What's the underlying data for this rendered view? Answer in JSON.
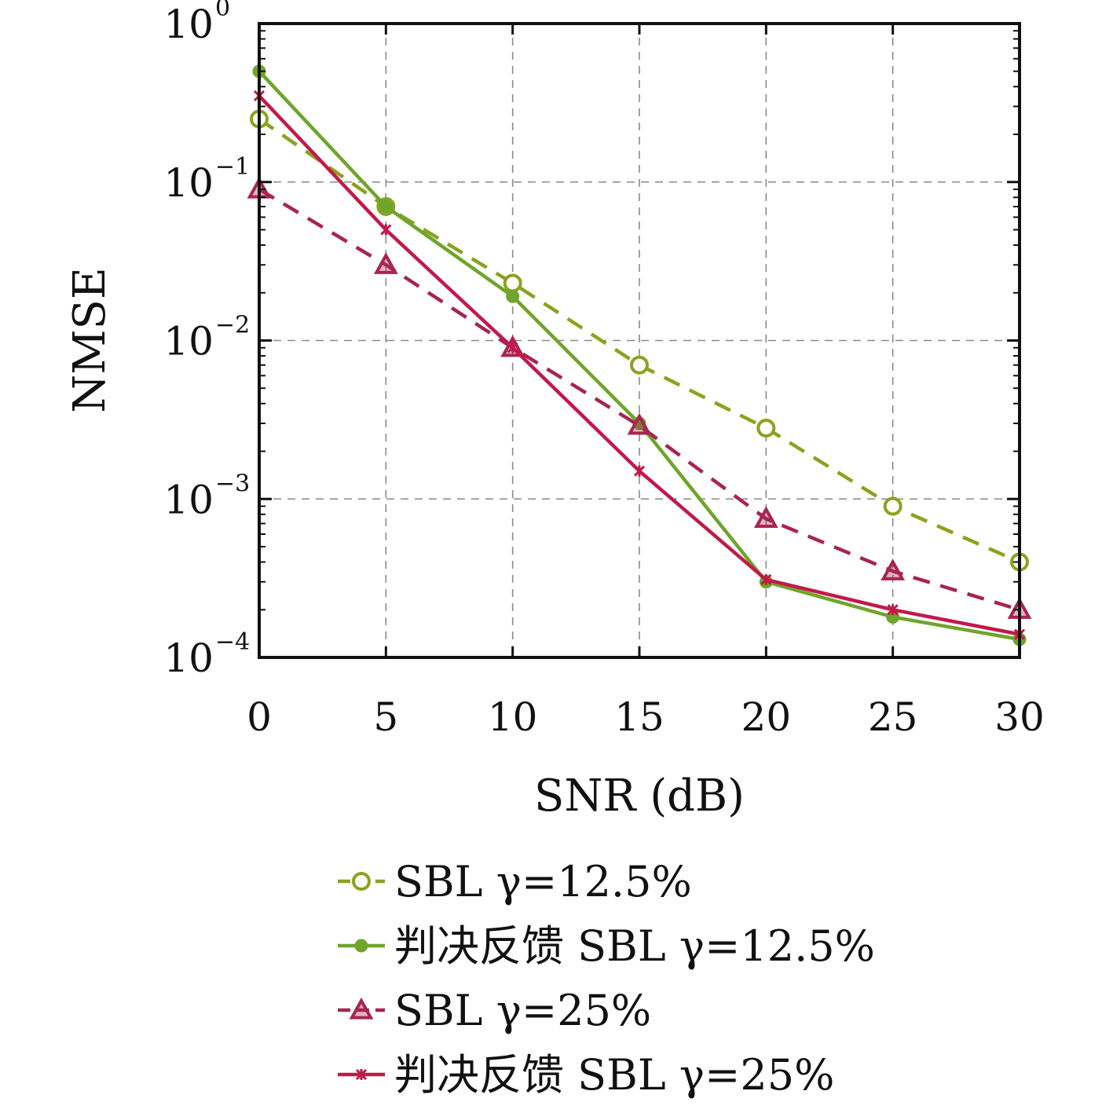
{
  "chart_data": {
    "type": "line",
    "title": "",
    "xlabel": "SNR (dB)",
    "ylabel": "NMSE",
    "x": [
      0,
      5,
      10,
      15,
      20,
      25,
      30
    ],
    "xlim": [
      0,
      30
    ],
    "ylim": [
      0.0001,
      1
    ],
    "yscale": "log",
    "xticks": [
      "0",
      "5",
      "10",
      "15",
      "20",
      "25",
      "30"
    ],
    "yticks": [
      {
        "base": "10",
        "exp": "0"
      },
      {
        "base": "10",
        "exp": "−1"
      },
      {
        "base": "10",
        "exp": "−2"
      },
      {
        "base": "10",
        "exp": "−3"
      },
      {
        "base": "10",
        "exp": "−4"
      }
    ],
    "grid": true,
    "legend_position": "below",
    "series": [
      {
        "name": "SBL γ=12.5%",
        "color": "#8aa31f",
        "dash": true,
        "marker": "circle-open",
        "values": [
          0.25,
          0.07,
          0.023,
          0.007,
          0.0028,
          0.0009,
          0.0004
        ]
      },
      {
        "name": "判决反馈 SBL γ=12.5%",
        "color": "#6ea52a",
        "dash": false,
        "marker": "dot",
        "values": [
          0.5,
          0.07,
          0.019,
          0.003,
          0.0003,
          0.00018,
          0.00013
        ]
      },
      {
        "name": "SBL γ=25%",
        "color": "#a8254f",
        "dash": true,
        "marker": "triangle",
        "values": [
          0.09,
          0.03,
          0.009,
          0.0029,
          0.00075,
          0.00035,
          0.0002
        ]
      },
      {
        "name": "判决反馈 SBL γ=25%",
        "color": "#c2194a",
        "dash": false,
        "marker": "star",
        "values": [
          0.35,
          0.05,
          0.009,
          0.0015,
          0.00031,
          0.0002,
          0.00014
        ]
      }
    ]
  }
}
